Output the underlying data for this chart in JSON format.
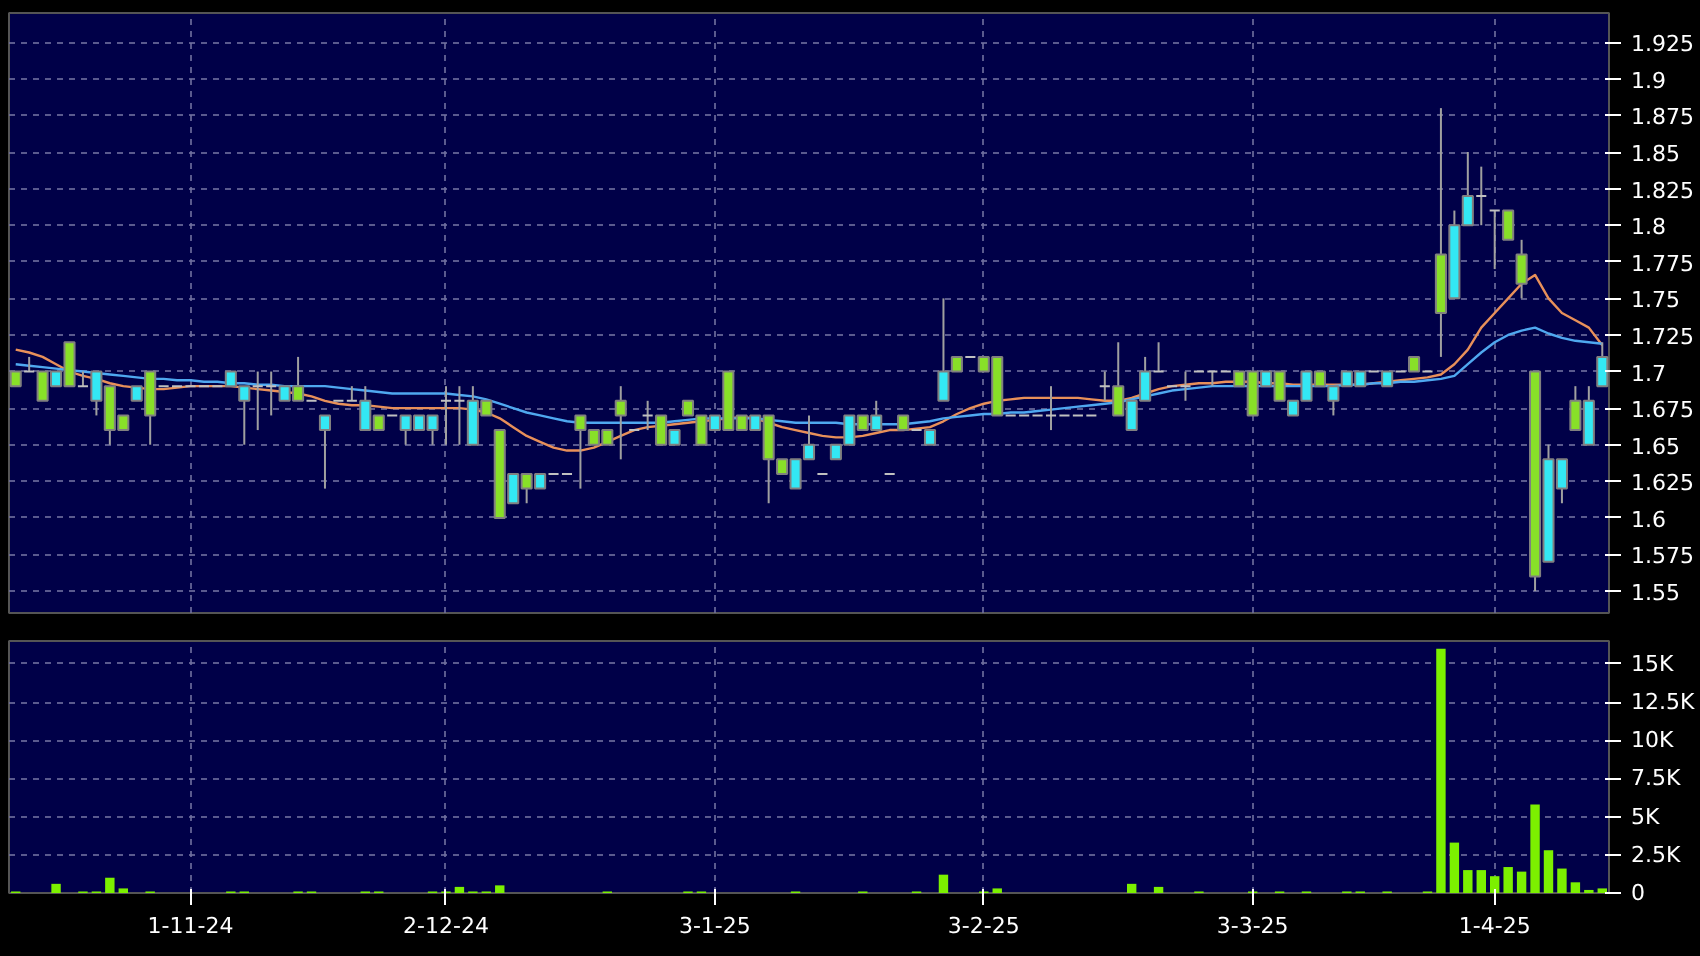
{
  "chart_data": [
    {
      "type": "candlestick",
      "categories": [
        null,
        null,
        null,
        null,
        null,
        null,
        null,
        null,
        null,
        null,
        null,
        null,
        null,
        null,
        null,
        null,
        null,
        null,
        null,
        null,
        null,
        null,
        null,
        null,
        null,
        null,
        null,
        null,
        null,
        null,
        null,
        null,
        null,
        null,
        null,
        null,
        null,
        null,
        null,
        null,
        null,
        null,
        null,
        null,
        null,
        null,
        null,
        null,
        null,
        null,
        null,
        null,
        null,
        null,
        null,
        null,
        null,
        null,
        null,
        null,
        null,
        null,
        null,
        null,
        null,
        null,
        null,
        null,
        null,
        null,
        null,
        null,
        null,
        null,
        null,
        null,
        null,
        null,
        null,
        null,
        null,
        null,
        null,
        null,
        null,
        null,
        null,
        null,
        null,
        null,
        null,
        null,
        null,
        null,
        null,
        null,
        null,
        null,
        null,
        null,
        null,
        null,
        null,
        null,
        null,
        null,
        null,
        null,
        null,
        null,
        null,
        null,
        null,
        null,
        null,
        null,
        null,
        null,
        null
      ],
      "ohlc": [
        [
          1.7,
          1.7,
          1.69,
          1.69
        ],
        [
          1.7,
          1.71,
          1.7,
          1.7
        ],
        [
          1.7,
          1.7,
          1.68,
          1.68
        ],
        [
          1.69,
          1.7,
          1.69,
          1.7
        ],
        [
          1.72,
          1.72,
          1.69,
          1.69
        ],
        [
          1.69,
          1.7,
          1.69,
          1.69
        ],
        [
          1.68,
          1.7,
          1.67,
          1.7
        ],
        [
          1.69,
          1.69,
          1.65,
          1.66
        ],
        [
          1.67,
          1.67,
          1.66,
          1.66
        ],
        [
          1.68,
          1.69,
          1.68,
          1.69
        ],
        [
          1.7,
          1.7,
          1.65,
          1.67
        ],
        [
          1.69,
          1.69,
          1.69,
          1.69
        ],
        [
          1.69,
          1.69,
          1.69,
          1.69
        ],
        [
          1.69,
          1.69,
          1.69,
          1.69
        ],
        [
          1.69,
          1.69,
          1.69,
          1.69
        ],
        [
          1.69,
          1.69,
          1.69,
          1.69
        ],
        [
          1.69,
          1.7,
          1.69,
          1.7
        ],
        [
          1.68,
          1.69,
          1.65,
          1.69
        ],
        [
          1.69,
          1.7,
          1.66,
          1.69
        ],
        [
          1.69,
          1.7,
          1.67,
          1.69
        ],
        [
          1.68,
          1.69,
          1.68,
          1.69
        ],
        [
          1.69,
          1.71,
          1.68,
          1.68
        ],
        [
          1.68,
          1.68,
          1.68,
          1.68
        ],
        [
          1.66,
          1.67,
          1.62,
          1.67
        ],
        [
          1.68,
          1.68,
          1.68,
          1.68
        ],
        [
          1.68,
          1.69,
          1.68,
          1.68
        ],
        [
          1.66,
          1.69,
          1.66,
          1.68
        ],
        [
          1.67,
          1.67,
          1.66,
          1.66
        ],
        [
          1.67,
          1.67,
          1.67,
          1.67
        ],
        [
          1.66,
          1.67,
          1.65,
          1.67
        ],
        [
          1.66,
          1.67,
          1.66,
          1.67
        ],
        [
          1.66,
          1.67,
          1.65,
          1.67
        ],
        [
          1.68,
          1.69,
          1.65,
          1.68
        ],
        [
          1.68,
          1.69,
          1.65,
          1.68
        ],
        [
          1.65,
          1.69,
          1.65,
          1.68
        ],
        [
          1.68,
          1.68,
          1.67,
          1.67
        ],
        [
          1.66,
          1.66,
          1.6,
          1.6
        ],
        [
          1.61,
          1.63,
          1.61,
          1.63
        ],
        [
          1.63,
          1.63,
          1.61,
          1.62
        ],
        [
          1.62,
          1.63,
          1.62,
          1.63
        ],
        [
          1.63,
          1.63,
          1.63,
          1.63
        ],
        [
          1.63,
          1.63,
          1.63,
          1.63
        ],
        [
          1.67,
          1.67,
          1.62,
          1.66
        ],
        [
          1.66,
          1.66,
          1.65,
          1.65
        ],
        [
          1.66,
          1.66,
          1.65,
          1.65
        ],
        [
          1.68,
          1.69,
          1.64,
          1.67
        ],
        [
          1.66,
          1.66,
          1.66,
          1.66
        ],
        [
          1.67,
          1.68,
          1.66,
          1.67
        ],
        [
          1.67,
          1.67,
          1.65,
          1.65
        ],
        [
          1.65,
          1.66,
          1.65,
          1.66
        ],
        [
          1.68,
          1.68,
          1.67,
          1.67
        ],
        [
          1.67,
          1.67,
          1.65,
          1.65
        ],
        [
          1.66,
          1.67,
          1.66,
          1.67
        ],
        [
          1.7,
          1.7,
          1.66,
          1.66
        ],
        [
          1.67,
          1.67,
          1.66,
          1.66
        ],
        [
          1.66,
          1.67,
          1.66,
          1.67
        ],
        [
          1.67,
          1.67,
          1.61,
          1.64
        ],
        [
          1.64,
          1.64,
          1.63,
          1.63
        ],
        [
          1.62,
          1.64,
          1.62,
          1.64
        ],
        [
          1.64,
          1.67,
          1.64,
          1.65
        ],
        [
          1.63,
          1.63,
          1.63,
          1.63
        ],
        [
          1.64,
          1.65,
          1.64,
          1.65
        ],
        [
          1.65,
          1.67,
          1.65,
          1.67
        ],
        [
          1.67,
          1.67,
          1.66,
          1.66
        ],
        [
          1.66,
          1.68,
          1.66,
          1.67
        ],
        [
          1.63,
          1.63,
          1.63,
          1.63
        ],
        [
          1.67,
          1.67,
          1.66,
          1.66
        ],
        [
          1.66,
          1.66,
          1.66,
          1.66
        ],
        [
          1.65,
          1.66,
          1.65,
          1.66
        ],
        [
          1.68,
          1.75,
          1.68,
          1.7
        ],
        [
          1.71,
          1.71,
          1.7,
          1.7
        ],
        [
          1.71,
          1.71,
          1.71,
          1.71
        ],
        [
          1.71,
          1.71,
          1.7,
          1.7
        ],
        [
          1.71,
          1.71,
          1.67,
          1.67
        ],
        [
          1.67,
          1.67,
          1.67,
          1.67
        ],
        [
          1.67,
          1.67,
          1.67,
          1.67
        ],
        [
          1.67,
          1.67,
          1.67,
          1.67
        ],
        [
          1.67,
          1.69,
          1.66,
          1.67
        ],
        [
          1.67,
          1.67,
          1.67,
          1.67
        ],
        [
          1.67,
          1.67,
          1.67,
          1.67
        ],
        [
          1.67,
          1.67,
          1.67,
          1.67
        ],
        [
          1.69,
          1.7,
          1.68,
          1.69
        ],
        [
          1.69,
          1.72,
          1.67,
          1.67
        ],
        [
          1.66,
          1.68,
          1.66,
          1.68
        ],
        [
          1.68,
          1.71,
          1.68,
          1.7
        ],
        [
          1.7,
          1.72,
          1.7,
          1.7
        ],
        [
          1.69,
          1.69,
          1.69,
          1.69
        ],
        [
          1.69,
          1.7,
          1.68,
          1.69
        ],
        [
          1.7,
          1.7,
          1.7,
          1.7
        ],
        [
          1.7,
          1.7,
          1.69,
          1.7
        ],
        [
          1.7,
          1.7,
          1.7,
          1.7
        ],
        [
          1.7,
          1.7,
          1.69,
          1.69
        ],
        [
          1.7,
          1.7,
          1.67,
          1.67
        ],
        [
          1.69,
          1.7,
          1.69,
          1.7
        ],
        [
          1.7,
          1.7,
          1.68,
          1.68
        ],
        [
          1.67,
          1.68,
          1.67,
          1.68
        ],
        [
          1.68,
          1.7,
          1.68,
          1.7
        ],
        [
          1.7,
          1.7,
          1.69,
          1.69
        ],
        [
          1.68,
          1.69,
          1.67,
          1.69
        ],
        [
          1.69,
          1.7,
          1.69,
          1.7
        ],
        [
          1.69,
          1.7,
          1.69,
          1.7
        ],
        [
          1.7,
          1.7,
          1.7,
          1.7
        ],
        [
          1.69,
          1.7,
          1.69,
          1.7
        ],
        [
          1.7,
          1.7,
          1.7,
          1.7
        ],
        [
          1.71,
          1.71,
          1.7,
          1.7
        ],
        [
          1.7,
          1.7,
          1.7,
          1.7
        ],
        [
          1.78,
          1.88,
          1.71,
          1.74
        ],
        [
          1.75,
          1.81,
          1.75,
          1.8
        ],
        [
          1.8,
          1.85,
          1.8,
          1.82
        ],
        [
          1.82,
          1.84,
          1.8,
          1.82
        ],
        [
          1.81,
          1.81,
          1.77,
          1.81
        ],
        [
          1.81,
          1.81,
          1.79,
          1.79
        ],
        [
          1.78,
          1.79,
          1.75,
          1.76
        ],
        [
          1.7,
          1.7,
          1.55,
          1.56
        ],
        [
          1.57,
          1.65,
          1.57,
          1.64
        ],
        [
          1.62,
          1.64,
          1.61,
          1.64
        ],
        [
          1.68,
          1.69,
          1.66,
          1.66
        ],
        [
          1.65,
          1.69,
          1.65,
          1.68
        ],
        [
          1.69,
          1.72,
          1.69,
          1.71
        ]
      ],
      "series": [
        {
          "type": "line",
          "color": "#e8905a",
          "values": [
            1.715,
            1.713,
            1.71,
            1.705,
            1.7,
            1.697,
            1.695,
            1.692,
            1.69,
            1.689,
            1.688,
            1.688,
            1.689,
            1.69,
            1.69,
            1.69,
            1.69,
            1.689,
            1.688,
            1.687,
            1.686,
            1.685,
            1.683,
            1.68,
            1.678,
            1.677,
            1.677,
            1.676,
            1.675,
            1.675,
            1.675,
            1.675,
            1.675,
            1.675,
            1.674,
            1.672,
            1.668,
            1.662,
            1.656,
            1.652,
            1.648,
            1.646,
            1.646,
            1.648,
            1.652,
            1.656,
            1.66,
            1.662,
            1.663,
            1.664,
            1.665,
            1.666,
            1.667,
            1.668,
            1.669,
            1.668,
            1.665,
            1.662,
            1.66,
            1.658,
            1.656,
            1.655,
            1.655,
            1.656,
            1.658,
            1.66,
            1.66,
            1.661,
            1.662,
            1.666,
            1.671,
            1.675,
            1.678,
            1.68,
            1.681,
            1.682,
            1.682,
            1.682,
            1.682,
            1.682,
            1.681,
            1.68,
            1.68,
            1.682,
            1.685,
            1.688,
            1.69,
            1.691,
            1.692,
            1.692,
            1.693,
            1.693,
            1.693,
            1.692,
            1.692,
            1.691,
            1.691,
            1.691,
            1.691,
            1.691,
            1.691,
            1.692,
            1.693,
            1.694,
            1.695,
            1.696,
            1.698,
            1.705,
            1.715,
            1.73,
            1.74,
            1.75,
            1.76,
            1.766,
            1.75,
            1.74,
            1.735,
            1.73,
            1.718
          ]
        },
        {
          "type": "line",
          "color": "#4fa8f0",
          "values": [
            1.705,
            1.704,
            1.703,
            1.702,
            1.701,
            1.7,
            1.699,
            1.698,
            1.697,
            1.696,
            1.695,
            1.695,
            1.694,
            1.694,
            1.693,
            1.693,
            1.692,
            1.692,
            1.691,
            1.691,
            1.69,
            1.69,
            1.69,
            1.69,
            1.689,
            1.688,
            1.687,
            1.686,
            1.685,
            1.685,
            1.685,
            1.685,
            1.685,
            1.684,
            1.683,
            1.681,
            1.678,
            1.675,
            1.672,
            1.67,
            1.668,
            1.666,
            1.665,
            1.665,
            1.665,
            1.665,
            1.665,
            1.665,
            1.665,
            1.666,
            1.667,
            1.668,
            1.668,
            1.668,
            1.668,
            1.668,
            1.667,
            1.666,
            1.665,
            1.665,
            1.665,
            1.665,
            1.664,
            1.664,
            1.664,
            1.664,
            1.664,
            1.665,
            1.666,
            1.668,
            1.669,
            1.67,
            1.671,
            1.671,
            1.672,
            1.672,
            1.673,
            1.674,
            1.675,
            1.676,
            1.677,
            1.678,
            1.679,
            1.681,
            1.683,
            1.685,
            1.687,
            1.688,
            1.689,
            1.69,
            1.69,
            1.69,
            1.69,
            1.69,
            1.69,
            1.69,
            1.69,
            1.69,
            1.69,
            1.691,
            1.691,
            1.692,
            1.692,
            1.693,
            1.693,
            1.694,
            1.695,
            1.697,
            1.705,
            1.713,
            1.72,
            1.725,
            1.728,
            1.73,
            1.726,
            1.723,
            1.721,
            1.72,
            1.719
          ]
        }
      ],
      "ylim": [
        1.535,
        1.945
      ],
      "yticks": [
        1.55,
        1.575,
        1.6,
        1.625,
        1.65,
        1.675,
        1.7,
        1.725,
        1.75,
        1.775,
        1.8,
        1.825,
        1.85,
        1.875,
        1.9,
        1.925
      ],
      "grid": true,
      "tick_labels": "y"
    },
    {
      "type": "bar",
      "categories": [
        null,
        null,
        null,
        null,
        null,
        null,
        null,
        null,
        null,
        null,
        null,
        null,
        null,
        "1-11-24",
        null,
        null,
        null,
        null,
        null,
        null,
        null,
        null,
        null,
        null,
        null,
        null,
        null,
        null,
        null,
        null,
        null,
        null,
        "2-12-24",
        null,
        null,
        null,
        null,
        null,
        null,
        null,
        null,
        null,
        null,
        null,
        null,
        null,
        null,
        null,
        null,
        null,
        null,
        null,
        "3-1-25",
        null,
        null,
        null,
        null,
        null,
        null,
        null,
        null,
        null,
        null,
        null,
        null,
        null,
        null,
        null,
        null,
        null,
        null,
        null,
        "3-2-25",
        null,
        null,
        null,
        null,
        null,
        null,
        null,
        null,
        null,
        null,
        null,
        null,
        null,
        null,
        null,
        null,
        null,
        null,
        null,
        "3-3-25",
        null,
        null,
        null,
        null,
        null,
        null,
        null,
        null,
        null,
        null,
        null,
        null,
        null,
        null,
        null,
        null,
        null,
        "1-4-25",
        null,
        null,
        null,
        null,
        null,
        null,
        null,
        null
      ],
      "color": "#7cf000",
      "values": [
        100,
        0,
        0,
        600,
        0,
        100,
        100,
        1000,
        300,
        0,
        100,
        0,
        0,
        0,
        0,
        0,
        100,
        100,
        0,
        0,
        0,
        100,
        100,
        0,
        0,
        0,
        100,
        100,
        0,
        0,
        0,
        100,
        100,
        400,
        100,
        100,
        500,
        0,
        0,
        0,
        0,
        0,
        0,
        0,
        100,
        0,
        0,
        0,
        0,
        0,
        100,
        100,
        0,
        0,
        0,
        0,
        0,
        0,
        100,
        0,
        0,
        0,
        0,
        100,
        0,
        0,
        0,
        100,
        0,
        1200,
        0,
        0,
        100,
        300,
        0,
        0,
        0,
        0,
        0,
        0,
        0,
        0,
        0,
        600,
        0,
        400,
        0,
        0,
        100,
        0,
        0,
        0,
        100,
        0,
        100,
        0,
        100,
        0,
        0,
        100,
        100,
        0,
        100,
        0,
        0,
        100,
        16000,
        3300,
        1500,
        1500,
        1100,
        1700,
        1400,
        5800,
        2800,
        1600,
        700,
        200,
        300
      ],
      "ylim": [
        0,
        16500
      ],
      "yticks": [
        0,
        {
          "value": 2500,
          "label": "2.5K"
        },
        {
          "value": 5000,
          "label": "5K"
        },
        {
          "value": 7500,
          "label": "7.5K"
        },
        {
          "value": 10000,
          "label": "10K"
        },
        {
          "value": 12500,
          "label": "12.5K"
        },
        {
          "value": 15000,
          "label": "15K"
        }
      ],
      "grid": true
    }
  ]
}
